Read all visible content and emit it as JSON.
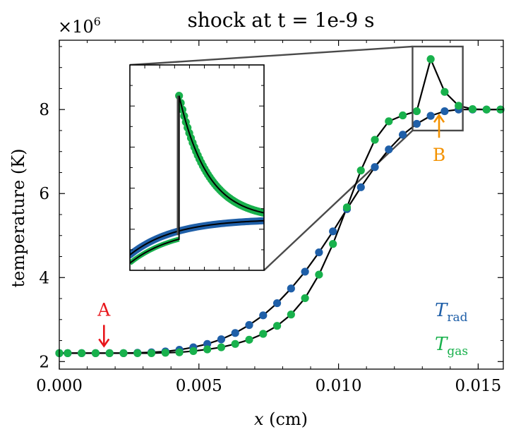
{
  "chart_data": {
    "type": "line",
    "title": "shock at t = 1e-9 s",
    "xlabel_var": "x",
    "xlabel_unit": " (cm)",
    "ylabel": "temperature (K)",
    "y_offset_label": "×10",
    "y_offset_exponent": "6",
    "xlim": [
      0.0,
      0.0159
    ],
    "ylim": [
      1.82,
      9.65
    ],
    "x_ticks": [
      0.0,
      0.005,
      0.01,
      0.015
    ],
    "x_tick_labels": [
      "0.000",
      "0.005",
      "0.010",
      "0.015"
    ],
    "y_ticks": [
      2,
      4,
      6,
      8
    ],
    "y_tick_labels": [
      "2",
      "4",
      "6",
      "8"
    ],
    "legend_position": "lower-right",
    "series": [
      {
        "name_main": "T",
        "name_sub": "rad",
        "color": "#1f5fa8",
        "x": [
          0.0,
          0.0003,
          0.0008,
          0.0013,
          0.0018,
          0.0023,
          0.0028,
          0.0033,
          0.0038,
          0.0043,
          0.0048,
          0.0053,
          0.0058,
          0.0063,
          0.0068,
          0.0073,
          0.0078,
          0.0083,
          0.0088,
          0.0093,
          0.0098,
          0.0103,
          0.0108,
          0.0113,
          0.0118,
          0.0123,
          0.0128,
          0.0133,
          0.0138,
          0.0143,
          0.0148,
          0.0153,
          0.0158
        ],
        "y": [
          2.2,
          2.2,
          2.2,
          2.2,
          2.2,
          2.2,
          2.21,
          2.22,
          2.24,
          2.28,
          2.34,
          2.42,
          2.53,
          2.68,
          2.87,
          3.1,
          3.39,
          3.74,
          4.14,
          4.6,
          5.1,
          5.63,
          6.15,
          6.63,
          7.05,
          7.4,
          7.66,
          7.85,
          7.96,
          8.0,
          8.0,
          8.0,
          8.0
        ]
      },
      {
        "name_main": "T",
        "name_sub": "gas",
        "color": "#18b14c",
        "x": [
          0.0,
          0.0003,
          0.0008,
          0.0013,
          0.0018,
          0.0023,
          0.0028,
          0.0033,
          0.0038,
          0.0043,
          0.0048,
          0.0053,
          0.0058,
          0.0063,
          0.0068,
          0.0073,
          0.0078,
          0.0083,
          0.0088,
          0.0093,
          0.0098,
          0.0103,
          0.0108,
          0.0113,
          0.0118,
          0.0123,
          0.0128,
          0.0133,
          0.0138,
          0.0143,
          0.0148,
          0.0153,
          0.0158
        ],
        "y": [
          2.2,
          2.2,
          2.2,
          2.2,
          2.2,
          2.2,
          2.2,
          2.2,
          2.21,
          2.22,
          2.25,
          2.29,
          2.34,
          2.42,
          2.52,
          2.66,
          2.85,
          3.12,
          3.51,
          4.07,
          4.8,
          5.67,
          6.55,
          7.28,
          7.72,
          7.86,
          7.96,
          9.2,
          8.42,
          8.09,
          8.01,
          8.0,
          8.0
        ]
      }
    ],
    "annotations": [
      {
        "text": "A",
        "color": "#e8161b",
        "x": 0.0016,
        "y": 2.2
      },
      {
        "text": "B",
        "color": "#f39200",
        "x": 0.0136,
        "y": 8.0
      }
    ],
    "inset": {
      "xlim": [
        0.01265,
        0.01445
      ],
      "ylim": [
        7.5,
        9.5
      ]
    }
  }
}
